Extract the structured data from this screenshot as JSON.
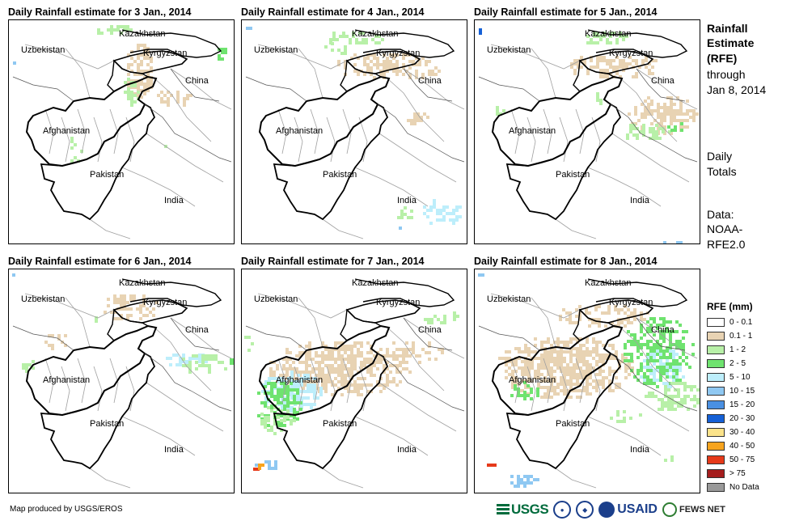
{
  "panels": [
    {
      "title": "Daily Rainfall estimate for 3 Jan., 2014",
      "pattern": "p3"
    },
    {
      "title": "Daily Rainfall estimate for 4 Jan., 2014",
      "pattern": "p4"
    },
    {
      "title": "Daily Rainfall estimate for 5 Jan., 2014",
      "pattern": "p5"
    },
    {
      "title": "Daily Rainfall estimate for 6 Jan., 2014",
      "pattern": "p6"
    },
    {
      "title": "Daily Rainfall estimate for 7 Jan., 2014",
      "pattern": "p7"
    },
    {
      "title": "Daily Rainfall estimate for 8 Jan., 2014",
      "pattern": "p8"
    }
  ],
  "map_labels": {
    "kazakhstan": "Kazakhstan",
    "uzbekistan": "Uzbekistan",
    "kyrgyzstan": "Kyrgyzstan",
    "china": "China",
    "afghanistan": "Afghanistan",
    "pakistan": "Pakistan",
    "india": "India"
  },
  "sidebar": {
    "title_line1": "Rainfall",
    "title_line2": "Estimate",
    "title_line3": "(RFE)",
    "through": "through",
    "date": "Jan 8, 2014",
    "daily_line1": "Daily",
    "daily_line2": "Totals",
    "data_line1": "Data:",
    "data_line2": "NOAA-",
    "data_line3": "RFE2.0"
  },
  "legend": {
    "title": "RFE (mm)",
    "items": [
      {
        "label": "0 - 0.1",
        "color": "#ffffff"
      },
      {
        "label": "0.1 - 1",
        "color": "#e8d3b3"
      },
      {
        "label": "1 - 2",
        "color": "#b8f0a8"
      },
      {
        "label": "2 - 5",
        "color": "#6fe36f"
      },
      {
        "label": "5 - 10",
        "color": "#bdeefb"
      },
      {
        "label": "10 - 15",
        "color": "#8fc8f2"
      },
      {
        "label": "15 - 20",
        "color": "#4a90e2"
      },
      {
        "label": "20 - 30",
        "color": "#1560d6"
      },
      {
        "label": "30 - 40",
        "color": "#fbe38a"
      },
      {
        "label": "40 - 50",
        "color": "#f7a41e"
      },
      {
        "label": "50 - 75",
        "color": "#e63a1a"
      },
      {
        "label": "> 75",
        "color": "#a51d1d"
      },
      {
        "label": "No Data",
        "color": "#999999"
      }
    ]
  },
  "credit": "Map produced by USGS/EROS",
  "logos": {
    "usgs": "USGS",
    "usaid": "USAID",
    "fews": "FEWS NET"
  }
}
